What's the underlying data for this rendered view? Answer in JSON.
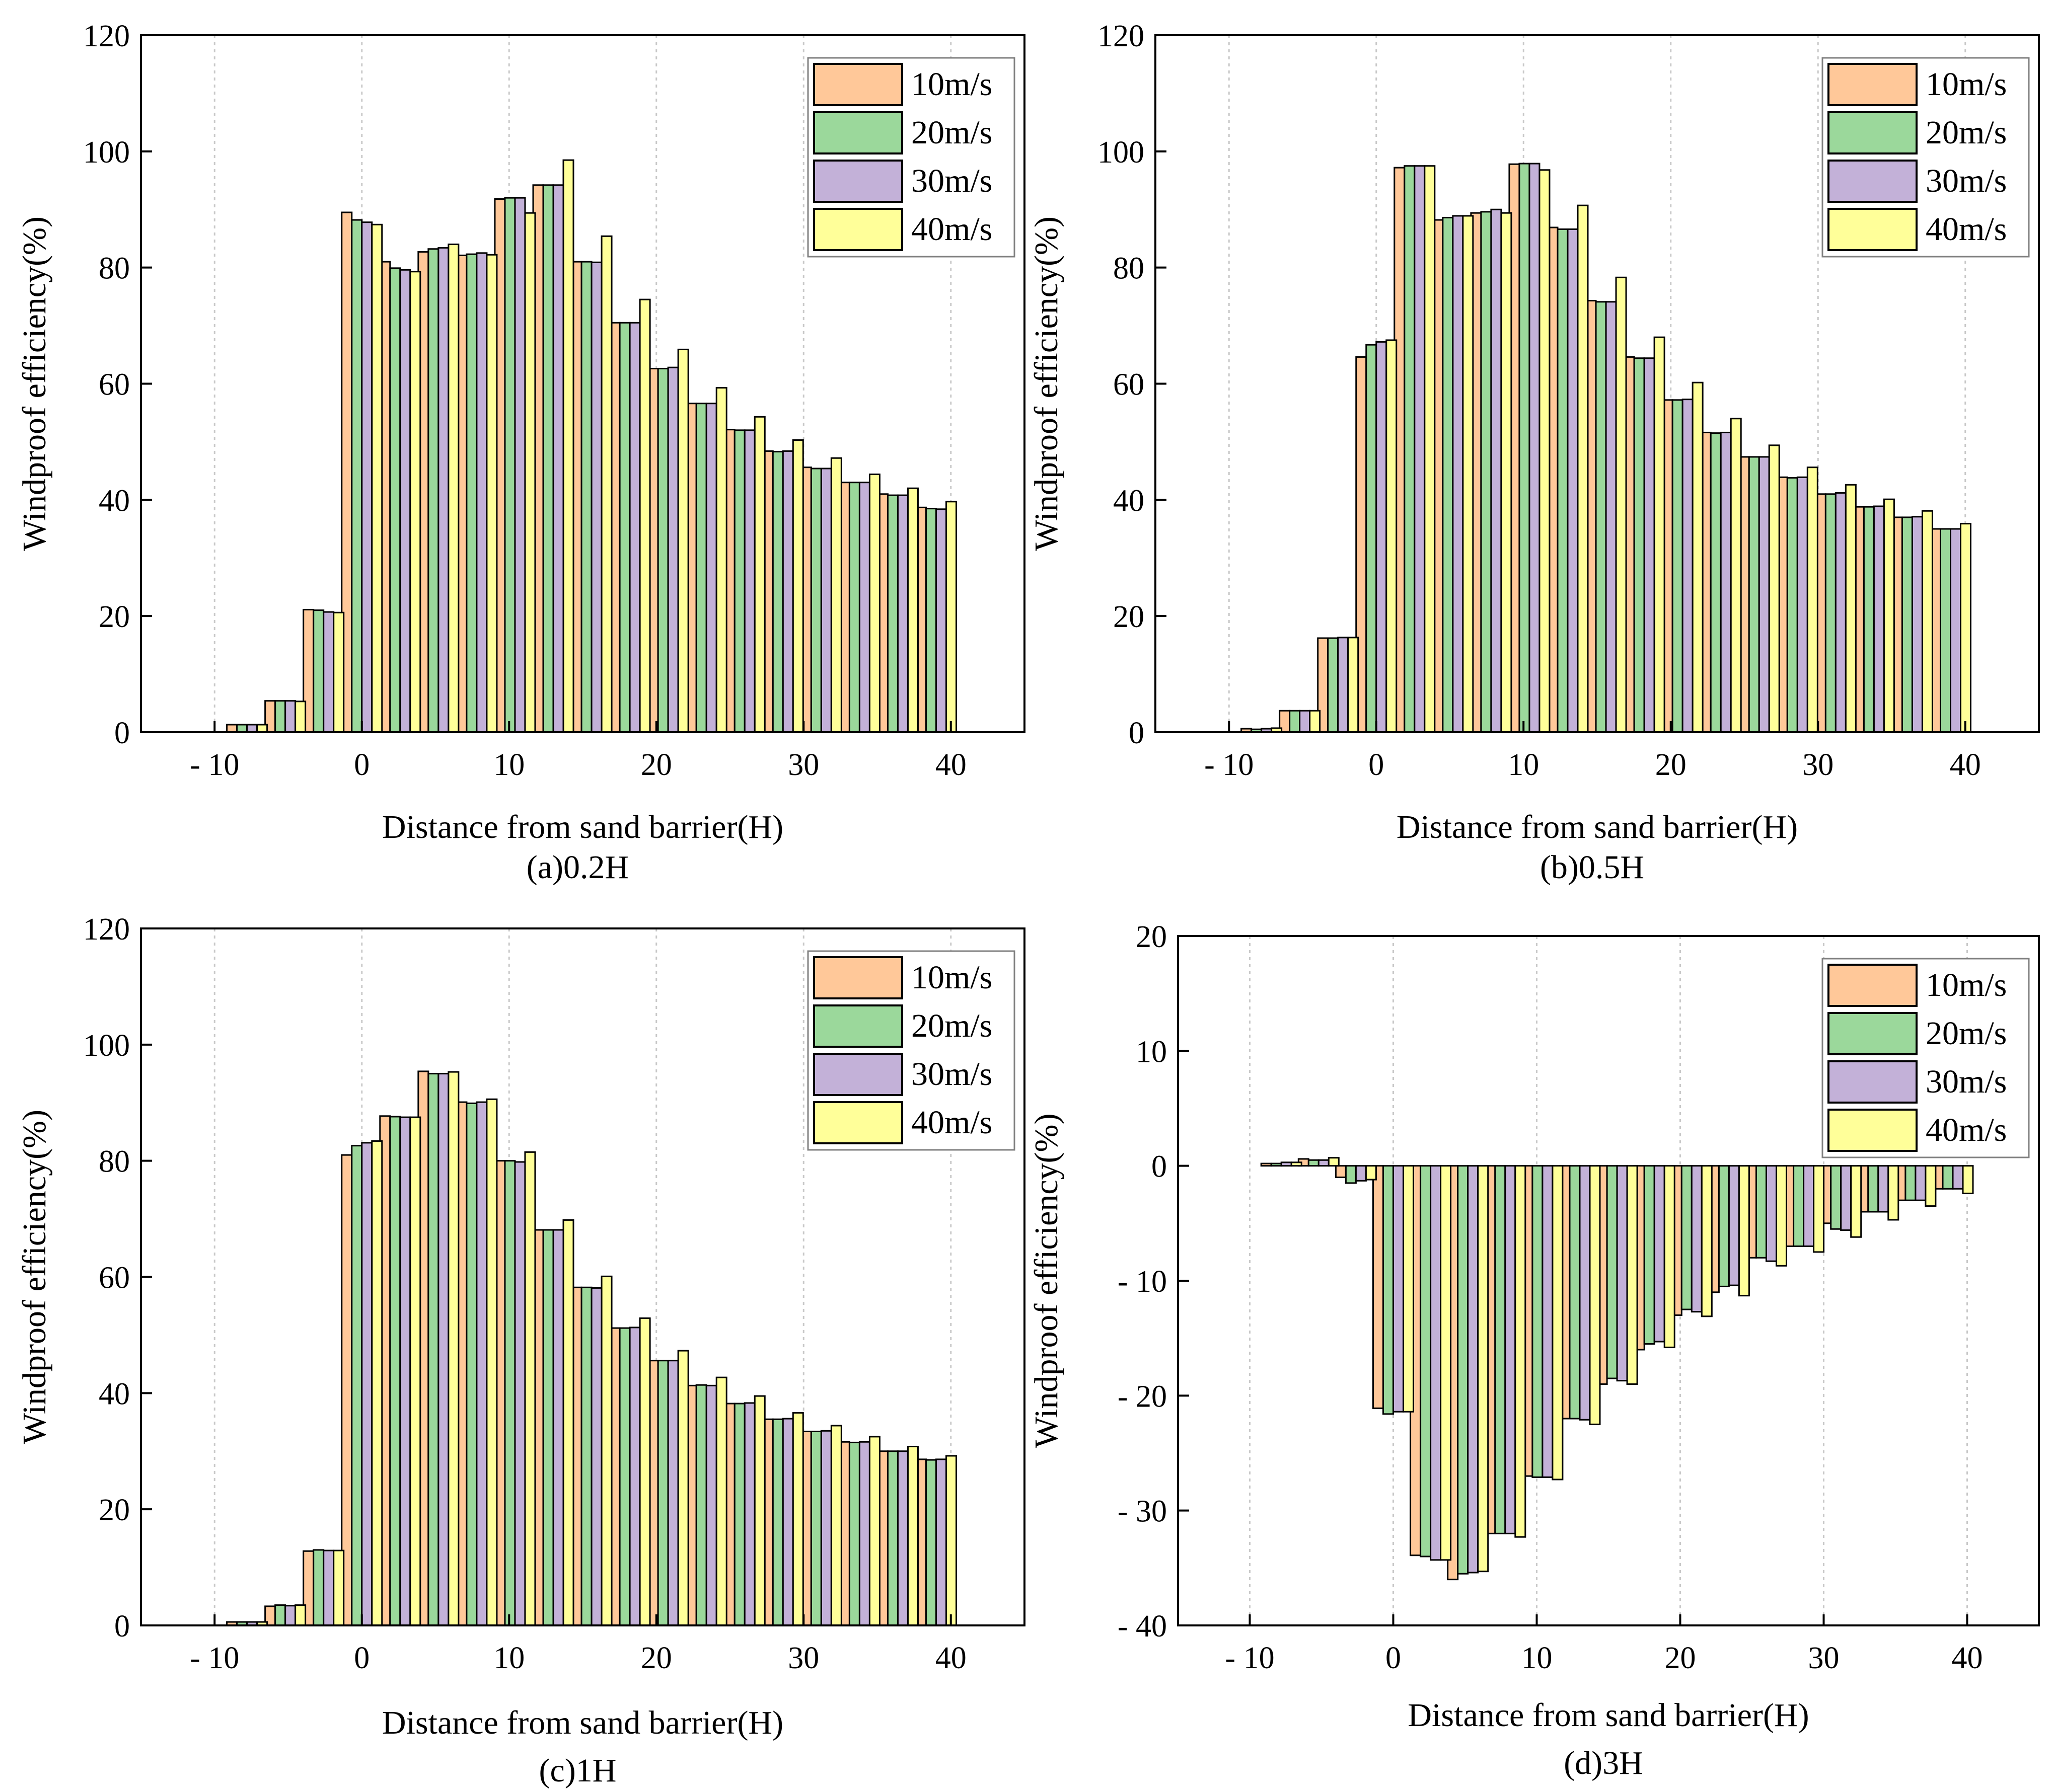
{
  "figure": {
    "series_colors": [
      "#FFC899",
      "#9BD89B",
      "#C3B1D8",
      "#FFFF99"
    ],
    "grid_color": "#c8c8c8"
  },
  "chart_data": [
    {
      "type": "bar",
      "caption": "(a)0.2H",
      "xlabel": "Distance from sand barrier(H)",
      "ylabel": "Windproof efficiency(%)",
      "xlim": [
        -15,
        45
      ],
      "ylim": [
        0,
        120
      ],
      "xticks": [
        -10,
        0,
        10,
        20,
        30,
        40
      ],
      "xtick_labels": [
        "- 10",
        "0",
        "10",
        "20",
        "30",
        "40"
      ],
      "yticks": [
        0,
        20,
        40,
        60,
        80,
        100,
        120
      ],
      "ytick_labels": [
        "0",
        "20",
        "40",
        "60",
        "80",
        "100",
        "120"
      ],
      "grid": "vertical dotted at x ticks",
      "legend_position": "top-right",
      "categories": [
        -10.4,
        -7.8,
        -5.2,
        -2.6,
        0,
        2.6,
        5.2,
        7.8,
        10.4,
        13,
        15.6,
        18.2,
        20.8,
        23.4,
        26,
        28.6,
        31.2,
        33.8,
        36.4,
        39
      ],
      "series": [
        {
          "name": "10m/s",
          "values": [
            0,
            1.3,
            5.4,
            21.1,
            89.5,
            81.0,
            82.7,
            82.1,
            91.8,
            94.2,
            81.0,
            70.5,
            62.6,
            56.6,
            52.1,
            48.4,
            45.6,
            43.0,
            41.0,
            38.7
          ]
        },
        {
          "name": "20m/s",
          "values": [
            0,
            1.3,
            5.4,
            21.0,
            88.2,
            79.9,
            83.2,
            82.3,
            92.0,
            94.2,
            81.0,
            70.5,
            62.6,
            56.6,
            52.0,
            48.3,
            45.4,
            43.0,
            40.8,
            38.5
          ]
        },
        {
          "name": "30m/s",
          "values": [
            0,
            1.3,
            5.4,
            20.7,
            87.8,
            79.6,
            83.4,
            82.5,
            92.0,
            94.2,
            80.9,
            70.5,
            62.8,
            56.6,
            52.0,
            48.4,
            45.4,
            43.0,
            40.8,
            38.4
          ]
        },
        {
          "name": "40m/s",
          "values": [
            0,
            1.3,
            5.3,
            20.6,
            87.4,
            79.3,
            84.0,
            82.2,
            89.4,
            98.5,
            85.4,
            74.5,
            65.9,
            59.3,
            54.3,
            50.3,
            47.2,
            44.4,
            42.0,
            39.7
          ]
        }
      ]
    },
    {
      "type": "bar",
      "caption": "(b)0.5H",
      "xlabel": "Distance from sand barrier(H)",
      "ylabel": "Windproof efficiency(%)",
      "xlim": [
        -15,
        45
      ],
      "ylim": [
        0,
        120
      ],
      "xticks": [
        -10,
        0,
        10,
        20,
        30,
        40
      ],
      "xtick_labels": [
        "- 10",
        "0",
        "10",
        "20",
        "30",
        "40"
      ],
      "yticks": [
        0,
        20,
        40,
        60,
        80,
        100,
        120
      ],
      "ytick_labels": [
        "0",
        "20",
        "40",
        "60",
        "80",
        "100",
        "120"
      ],
      "grid": "vertical dotted at x ticks",
      "legend_position": "top-right",
      "categories": [
        -7.8,
        -5.2,
        -2.6,
        0,
        2.6,
        5.2,
        7.8,
        10.4,
        13,
        15.6,
        18.2,
        20.8,
        23.4,
        26,
        28.6,
        31.2,
        33.8,
        36.4,
        39
      ],
      "series": [
        {
          "name": "10m/s",
          "values": [
            0.6,
            3.7,
            16.2,
            64.6,
            97.2,
            88.2,
            89.4,
            97.8,
            86.9,
            74.3,
            64.6,
            57.2,
            51.6,
            47.4,
            43.9,
            41.0,
            38.8,
            37.0,
            35.0
          ]
        },
        {
          "name": "20m/s",
          "values": [
            0.5,
            3.7,
            16.2,
            66.7,
            97.5,
            88.6,
            89.6,
            97.9,
            86.6,
            74.1,
            64.4,
            57.2,
            51.5,
            47.4,
            43.8,
            41.0,
            38.8,
            37.0,
            35.0
          ]
        },
        {
          "name": "30m/s",
          "values": [
            0.6,
            3.7,
            16.3,
            67.2,
            97.5,
            88.9,
            90.0,
            97.9,
            86.6,
            74.1,
            64.4,
            57.3,
            51.6,
            47.4,
            43.9,
            41.2,
            38.9,
            37.1,
            35.0
          ]
        },
        {
          "name": "40m/s",
          "values": [
            0.7,
            3.7,
            16.3,
            67.5,
            97.5,
            88.9,
            89.4,
            96.8,
            90.7,
            78.3,
            68.0,
            60.2,
            54.0,
            49.4,
            45.6,
            42.6,
            40.1,
            38.1,
            35.9
          ]
        }
      ]
    },
    {
      "type": "bar",
      "caption": "(c)1H",
      "xlabel": "Distance from sand barrier(H)",
      "ylabel": "Windproof efficiency(%)",
      "xlim": [
        -15,
        45
      ],
      "ylim": [
        0,
        120
      ],
      "xticks": [
        -10,
        0,
        10,
        20,
        30,
        40
      ],
      "xtick_labels": [
        "- 10",
        "0",
        "10",
        "20",
        "30",
        "40"
      ],
      "yticks": [
        0,
        20,
        40,
        60,
        80,
        100,
        120
      ],
      "ytick_labels": [
        "0",
        "20",
        "40",
        "60",
        "80",
        "100",
        "120"
      ],
      "grid": "vertical dotted at x ticks",
      "legend_position": "top-right",
      "categories": [
        -10.4,
        -7.8,
        -5.2,
        -2.6,
        0,
        2.6,
        5.2,
        7.8,
        10.4,
        13,
        15.6,
        18.2,
        20.8,
        23.4,
        26,
        28.6,
        31.2,
        33.8,
        36.4,
        39
      ],
      "series": [
        {
          "name": "10m/s",
          "values": [
            0,
            0.6,
            3.3,
            12.8,
            81.0,
            87.7,
            95.4,
            90.1,
            80.0,
            68.1,
            58.2,
            51.2,
            45.6,
            41.3,
            38.2,
            35.5,
            33.4,
            31.6,
            30.0,
            28.6
          ]
        },
        {
          "name": "20m/s",
          "values": [
            0,
            0.6,
            3.5,
            13.0,
            82.6,
            87.6,
            95.0,
            89.9,
            80.0,
            68.1,
            58.2,
            51.2,
            45.6,
            41.4,
            38.2,
            35.5,
            33.4,
            31.5,
            30.0,
            28.5
          ]
        },
        {
          "name": "30m/s",
          "values": [
            0,
            0.6,
            3.4,
            12.9,
            83.1,
            87.5,
            95.0,
            90.1,
            79.8,
            68.1,
            58.1,
            51.3,
            45.6,
            41.3,
            38.3,
            35.6,
            33.5,
            31.6,
            30.0,
            28.6
          ]
        },
        {
          "name": "40m/s",
          "values": [
            0,
            0.6,
            3.5,
            12.9,
            83.4,
            87.5,
            95.3,
            90.6,
            81.5,
            69.8,
            60.1,
            52.9,
            47.3,
            42.7,
            39.5,
            36.6,
            34.4,
            32.5,
            30.8,
            29.2
          ]
        }
      ]
    },
    {
      "type": "bar",
      "caption": "(d)3H",
      "xlabel": "Distance from sand barrier(H)",
      "ylabel": "Windproof efficiency(%)",
      "xlim": [
        -15,
        45
      ],
      "ylim": [
        -40,
        20
      ],
      "xticks": [
        -10,
        0,
        10,
        20,
        30,
        40
      ],
      "xtick_labels": [
        "- 10",
        "0",
        "10",
        "20",
        "30",
        "40"
      ],
      "yticks": [
        -40,
        -30,
        -20,
        -10,
        0,
        10,
        20
      ],
      "ytick_labels": [
        "- 40",
        "- 30",
        "- 20",
        "- 10",
        "0",
        "10",
        "20"
      ],
      "grid": "vertical dotted at x ticks",
      "legend_position": "top-right",
      "categories": [
        -7.8,
        -5.2,
        -2.6,
        0,
        2.6,
        5.2,
        7.8,
        10.4,
        13,
        15.6,
        18.2,
        20.8,
        23.4,
        26,
        28.6,
        31.2,
        33.8,
        36.4,
        39
      ],
      "series": [
        {
          "name": "10m/s",
          "values": [
            0.2,
            0.6,
            -1.0,
            -21.1,
            -33.9,
            -36.0,
            -32.0,
            -27.0,
            -22.0,
            -19.0,
            -16.0,
            -13.0,
            -11.0,
            -8.0,
            -7.0,
            -5.0,
            -4.0,
            -3.0,
            -2.0
          ]
        },
        {
          "name": "20m/s",
          "values": [
            0.2,
            0.5,
            -1.5,
            -21.6,
            -34.0,
            -35.5,
            -32.0,
            -27.1,
            -22.0,
            -18.5,
            -15.5,
            -12.5,
            -10.5,
            -8.0,
            -7.0,
            -5.5,
            -4.0,
            -3.0,
            -2.0
          ]
        },
        {
          "name": "30m/s",
          "values": [
            0.3,
            0.5,
            -1.3,
            -21.4,
            -34.3,
            -35.4,
            -32.0,
            -27.1,
            -22.1,
            -18.7,
            -15.3,
            -12.7,
            -10.4,
            -8.3,
            -7.0,
            -5.6,
            -4.0,
            -3.0,
            -2.0
          ]
        },
        {
          "name": "40m/s",
          "values": [
            0.3,
            0.7,
            -1.2,
            -21.4,
            -34.3,
            -35.3,
            -32.3,
            -27.3,
            -22.5,
            -19.0,
            -15.8,
            -13.1,
            -11.3,
            -8.7,
            -7.5,
            -6.2,
            -4.7,
            -3.5,
            -2.4
          ]
        }
      ]
    }
  ]
}
